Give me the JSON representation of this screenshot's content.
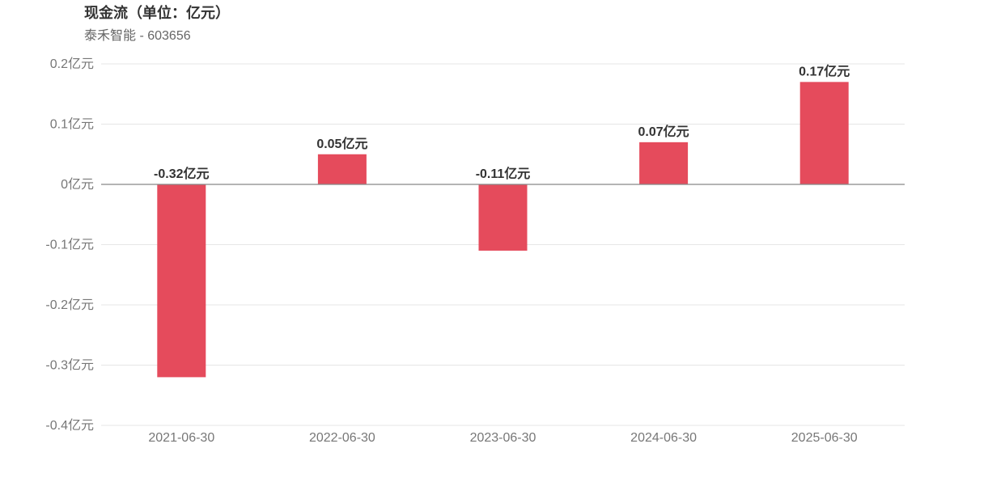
{
  "header": {
    "title": "现金流（单位：亿元）",
    "subtitle": "泰禾智能 - 603656"
  },
  "chart_data": {
    "type": "bar",
    "title": "现金流（单位：亿元）",
    "subtitle": "泰禾智能 - 603656",
    "categories": [
      "2021-06-30",
      "2022-06-30",
      "2023-06-30",
      "2024-06-30",
      "2025-06-30"
    ],
    "values": [
      -0.32,
      0.05,
      -0.11,
      0.07,
      0.17
    ],
    "data_labels": [
      "-0.32亿元",
      "0.05亿元",
      "-0.11亿元",
      "0.07亿元",
      "0.17亿元"
    ],
    "y_ticks": [
      0.2,
      0.1,
      0,
      -0.1,
      -0.2,
      -0.3,
      -0.4
    ],
    "y_tick_labels": [
      "0.2亿元",
      "0.1亿元",
      "0亿元",
      "-0.1亿元",
      "-0.2亿元",
      "-0.3亿元",
      "-0.4亿元"
    ],
    "ylim": [
      -0.4,
      0.2
    ],
    "xlabel": "",
    "ylabel": "",
    "grid": true,
    "colors": {
      "bar": "#e54b5c",
      "grid": "#e6e6e6",
      "zero_line": "#888888"
    }
  }
}
